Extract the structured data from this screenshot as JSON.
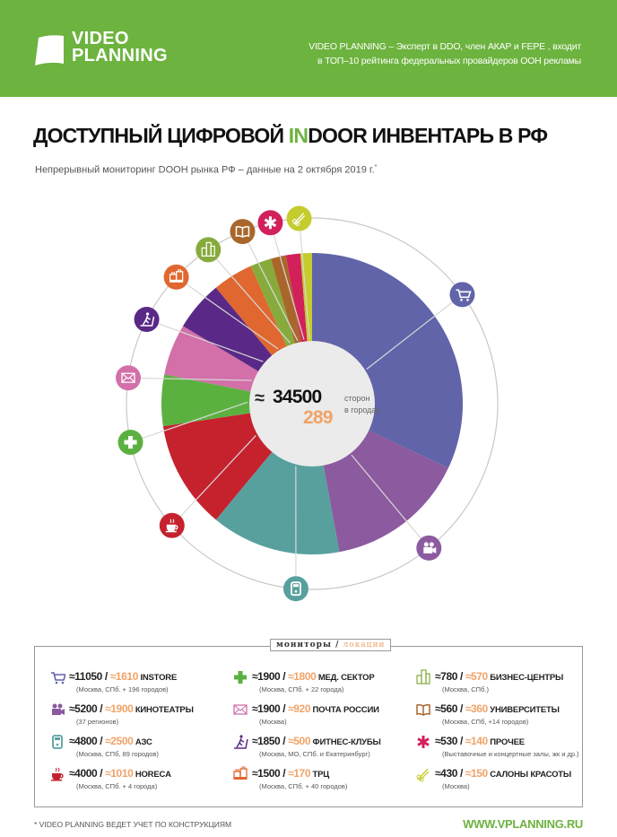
{
  "colors": {
    "brand": "#6db33f",
    "orange": "#f0a368"
  },
  "header": {
    "logo_lines": [
      "VIDEO",
      "PLANNING"
    ],
    "tagline_lines": [
      "VIDEO PLANNING – Эксперт в DDO, член АКАР и FEPE , входит",
      "в ТОП–10 рейтинга федеральных провайдеров ООН рекламы"
    ]
  },
  "title": {
    "part1": "ДОСТУПНЫЙ ЦИФРОВОЙ ",
    "highlight": "IN",
    "part2": "DOOR ИНВЕНТАРЬ В РФ"
  },
  "subtitle": {
    "text": "Непрерывный мониторинг DOOH  рынка РФ – данные на 2 октября 2019 г.",
    "mark": "*"
  },
  "center": {
    "approx": "≈",
    "total": "34500",
    "total_label": "сторон",
    "cities": "289",
    "cities_label": "в городах"
  },
  "chart_data": {
    "type": "pie",
    "style": "donut",
    "start": "top, clockwise",
    "slices": [
      {
        "name": "INSTORE",
        "value": 11050,
        "color": "#6164a8",
        "icon": "shopping-cart-icon"
      },
      {
        "name": "КИНОТЕАТРЫ",
        "value": 5200,
        "color": "#8c5a9f",
        "icon": "movie-camera-icon"
      },
      {
        "name": "АЗС",
        "value": 4800,
        "color": "#57a09e",
        "icon": "fuel-pump-icon"
      },
      {
        "name": "HORECA",
        "value": 4000,
        "color": "#c5222e",
        "icon": "coffee-cup-icon"
      },
      {
        "name": "МЕД. СЕКТОР",
        "value": 1900,
        "color": "#5bb140",
        "icon": "medical-cross-icon"
      },
      {
        "name": "ПОЧТА РОССИИ",
        "value": 1900,
        "color": "#d36fa9",
        "icon": "envelope-icon"
      },
      {
        "name": "ФИТНЕС-КЛУБЫ",
        "value": 1850,
        "color": "#5a2987",
        "icon": "treadmill-icon"
      },
      {
        "name": "ТРЦ",
        "value": 1500,
        "color": "#e0672f",
        "icon": "mall-icon"
      },
      {
        "name": "БИЗНЕС-ЦЕНТРЫ",
        "value": 780,
        "color": "#86ab3c",
        "icon": "office-building-icon"
      },
      {
        "name": "УНИВЕРСИТЕТЫ",
        "value": 560,
        "color": "#a9662b",
        "icon": "book-icon"
      },
      {
        "name": "ПРОЧЕЕ",
        "value": 530,
        "color": "#d2205a",
        "icon": "asterisk-icon"
      },
      {
        "name": "САЛОНЫ КРАСОТЫ",
        "value": 430,
        "color": "#c5cc2e",
        "icon": "scissors-icon"
      }
    ]
  },
  "legend": {
    "head_monitors": "мониторы",
    "head_sep": " / ",
    "head_locations": "локации",
    "items": [
      {
        "monitors": "≈11050 / ",
        "locations": "≈1610",
        "label": " INSTORE",
        "note": "(Москва, СПб. + 196 городов)",
        "color": "#6164a8",
        "icon": "shopping-cart-icon"
      },
      {
        "monitors": "≈5200 / ",
        "locations": "≈1900",
        "label": " КИНОТЕАТРЫ",
        "note": "(37 регионов)",
        "color": "#8c5a9f",
        "icon": "movie-camera-icon"
      },
      {
        "monitors": "≈4800 / ",
        "locations": "≈2500",
        "label": " АЗС",
        "note": "(Москва, СПб, 89 городов)",
        "color": "#57a09e",
        "icon": "fuel-pump-icon"
      },
      {
        "monitors": "≈4000 / ",
        "locations": "≈1010",
        "label": " HORECA",
        "note": "(Москва, СПб. + 4 города)",
        "color": "#c5222e",
        "icon": "coffee-cup-icon"
      },
      {
        "monitors": "≈1900 / ",
        "locations": "≈1800",
        "label": " МЕД. СЕКТОР",
        "note": "(Москва, СПб. + 22 города)",
        "color": "#5bb140",
        "icon": "medical-cross-icon"
      },
      {
        "monitors": "≈1900 / ",
        "locations": "≈920",
        "label": " ПОЧТА РОССИИ",
        "note": "(Москва)",
        "color": "#d36fa9",
        "icon": "envelope-icon"
      },
      {
        "monitors": "≈1850 / ",
        "locations": "≈500",
        "label": " ФИТНЕС-КЛУБЫ",
        "note": "(Москва, МО, СПб. и Екатеринбург)",
        "color": "#5a2987",
        "icon": "treadmill-icon"
      },
      {
        "monitors": "≈1500 / ",
        "locations": "≈170",
        "label": " ТРЦ",
        "note": "(Москва, СПб. + 40 городов)",
        "color": "#e0672f",
        "icon": "mall-icon"
      },
      {
        "monitors": "≈780 / ",
        "locations": "≈570",
        "label": " БИЗНЕС-ЦЕНТРЫ",
        "note": "(Москва, СПб.)",
        "color": "#86ab3c",
        "icon": "office-building-icon"
      },
      {
        "monitors": "≈560 / ",
        "locations": "≈360",
        "label": " УНИВЕРСИТЕТЫ",
        "note": "(Москва, СПб, +14 городов)",
        "color": "#a9662b",
        "icon": "book-icon"
      },
      {
        "monitors": "≈530 / ",
        "locations": "≈140",
        "label": "  ПРОЧЕЕ",
        "note": "(Выставочные и концертные залы, жк и др.)",
        "color": "#d2205a",
        "icon": "asterisk-icon"
      },
      {
        "monitors": "≈430 / ",
        "locations": "≈150",
        "label": " САЛОНЫ КРАСОТЫ",
        "note": "(Москва)",
        "color": "#c5cc2e",
        "icon": "scissors-icon"
      }
    ]
  },
  "footer": {
    "note": "* VIDEO PLANNING ВЕДЕТ УЧЕТ ПО КОНСТРУКЦИЯМ",
    "site": "WWW.VPLANNING.RU"
  }
}
